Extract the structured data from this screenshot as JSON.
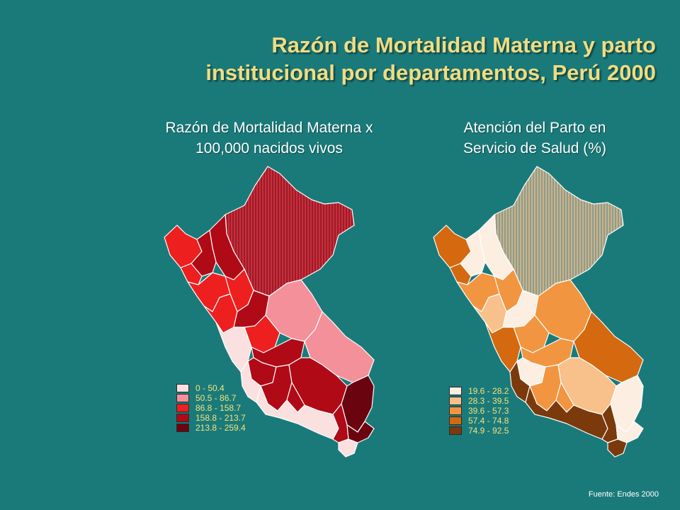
{
  "title": {
    "line1": "Razón de Mortalidad Materna y parto",
    "line2": "institucional por departamentos, Perú 2000"
  },
  "left_map": {
    "subtitle_line1": "Razón de Mortalidad Materna x",
    "subtitle_line2": "100,000 nacidos vivos",
    "legend": [
      {
        "label": "0 - 50.4",
        "color": "#fbe0e0"
      },
      {
        "label": "50.5 - 86.7",
        "color": "#f4909a"
      },
      {
        "label": "86.8 - 158.7",
        "color": "#ee1f1f"
      },
      {
        "label": "158.8 - 213.7",
        "color": "#b00a16"
      },
      {
        "label": "213.8 - 259.4",
        "color": "#6a0510"
      }
    ]
  },
  "right_map": {
    "subtitle_line1": "Atención del Parto en",
    "subtitle_line2": "Servicio de Salud (%)",
    "legend": [
      {
        "label": "19.6 - 28.2",
        "color": "#fdeee2"
      },
      {
        "label": "28.3 - 39.5",
        "color": "#f8c08a"
      },
      {
        "label": "39.6 - 57.3",
        "color": "#f29540"
      },
      {
        "label": "57.4 - 74.8",
        "color": "#d4690f"
      },
      {
        "label": "74.9 - 92.5",
        "color": "#7a3a0c"
      }
    ]
  },
  "source": "Fuente: Endes 2000"
}
